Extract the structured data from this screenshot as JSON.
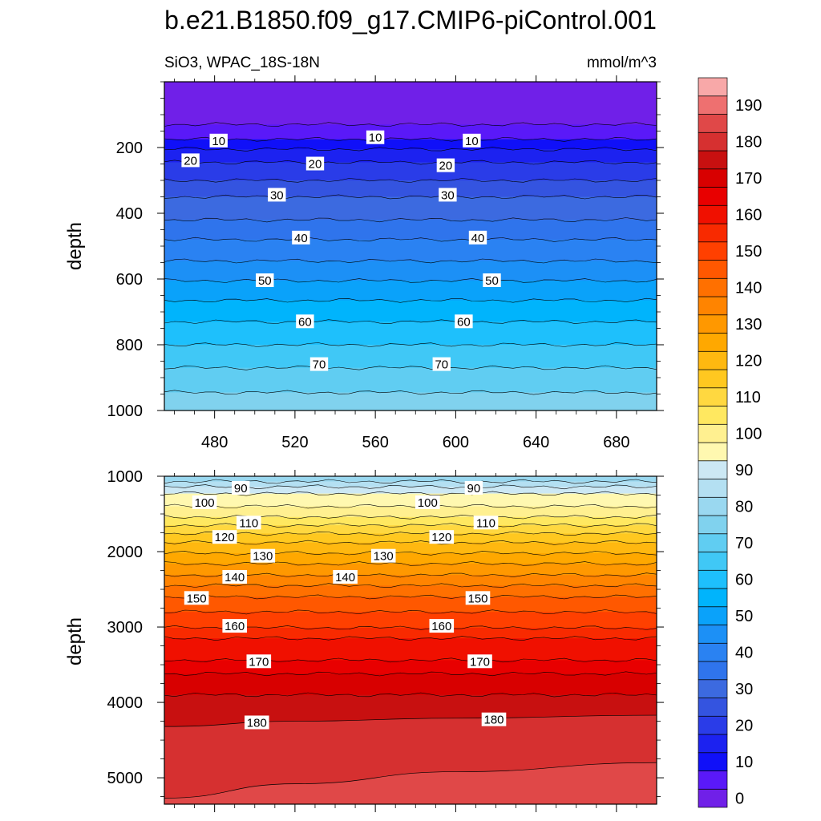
{
  "title": "b.e21.B1850.f09_g17.CMIP6-piControl.001",
  "chart_data": [
    {
      "type": "contour",
      "panel": "upper",
      "left_label": "SiO3, WPAC_18S-18N",
      "right_label": "mmol/m^3",
      "ylabel": "depth",
      "ylim": [
        1000,
        0
      ],
      "xlim": [
        455,
        700
      ],
      "xticks": [
        480,
        520,
        560,
        600,
        640,
        680
      ],
      "yticks": [
        200,
        400,
        600,
        800,
        1000
      ],
      "contour_depths": [
        {
          "level": 5,
          "depth": 130
        },
        {
          "level": 10,
          "depth": 175
        },
        {
          "level": 15,
          "depth": 205
        },
        {
          "level": 20,
          "depth": 245
        },
        {
          "level": 25,
          "depth": 300
        },
        {
          "level": 30,
          "depth": 350
        },
        {
          "level": 35,
          "depth": 420
        },
        {
          "level": 40,
          "depth": 480
        },
        {
          "level": 45,
          "depth": 545
        },
        {
          "level": 50,
          "depth": 605
        },
        {
          "level": 55,
          "depth": 665
        },
        {
          "level": 60,
          "depth": 730
        },
        {
          "level": 65,
          "depth": 800
        },
        {
          "level": 70,
          "depth": 870
        },
        {
          "level": 75,
          "depth": 945
        }
      ],
      "contour_labels": [
        {
          "text": "10",
          "x": 482,
          "depth": 180
        },
        {
          "text": "10",
          "x": 560,
          "depth": 170
        },
        {
          "text": "10",
          "x": 608,
          "depth": 180
        },
        {
          "text": "20",
          "x": 468,
          "depth": 240
        },
        {
          "text": "20",
          "x": 530,
          "depth": 250
        },
        {
          "text": "20",
          "x": 595,
          "depth": 255
        },
        {
          "text": "30",
          "x": 511,
          "depth": 345
        },
        {
          "text": "30",
          "x": 596,
          "depth": 345
        },
        {
          "text": "40",
          "x": 523,
          "depth": 475
        },
        {
          "text": "40",
          "x": 611,
          "depth": 475
        },
        {
          "text": "50",
          "x": 505,
          "depth": 605
        },
        {
          "text": "50",
          "x": 618,
          "depth": 605
        },
        {
          "text": "60",
          "x": 525,
          "depth": 730
        },
        {
          "text": "60",
          "x": 604,
          "depth": 730
        },
        {
          "text": "70",
          "x": 532,
          "depth": 860
        },
        {
          "text": "70",
          "x": 593,
          "depth": 860
        }
      ]
    },
    {
      "type": "contour",
      "panel": "lower",
      "ylabel": "depth",
      "ylim": [
        5350,
        1000
      ],
      "xlim": [
        455,
        700
      ],
      "xticks": [
        480,
        520,
        560,
        600,
        640,
        680
      ],
      "yticks": [
        1000,
        2000,
        3000,
        4000,
        5000
      ],
      "contour_depths": [
        {
          "level": 85,
          "depth": 1070
        },
        {
          "level": 90,
          "depth": 1140
        },
        {
          "level": 95,
          "depth": 1230
        },
        {
          "level": 100,
          "depth": 1400
        },
        {
          "level": 105,
          "depth": 1540
        },
        {
          "level": 110,
          "depth": 1650
        },
        {
          "level": 115,
          "depth": 1760
        },
        {
          "level": 120,
          "depth": 1880
        },
        {
          "level": 125,
          "depth": 2020
        },
        {
          "level": 130,
          "depth": 2160
        },
        {
          "level": 135,
          "depth": 2310
        },
        {
          "level": 140,
          "depth": 2450
        },
        {
          "level": 145,
          "depth": 2600
        },
        {
          "level": 150,
          "depth": 2800
        },
        {
          "level": 155,
          "depth": 3010
        },
        {
          "level": 160,
          "depth": 3150
        },
        {
          "level": 165,
          "depth": 3440
        },
        {
          "level": 170,
          "depth": 3620
        },
        {
          "level": 175,
          "depth": 3900
        }
      ],
      "contour_180": [
        {
          "x": 455,
          "depth": 4320
        },
        {
          "x": 520,
          "depth": 4250
        },
        {
          "x": 600,
          "depth": 4210
        },
        {
          "x": 700,
          "depth": 4170
        }
      ],
      "contour_185": [
        {
          "x": 455,
          "depth": 5270
        },
        {
          "x": 520,
          "depth": 5080
        },
        {
          "x": 600,
          "depth": 4920
        },
        {
          "x": 700,
          "depth": 4800
        }
      ],
      "contour_labels": [
        {
          "text": "90",
          "x": 493,
          "depth": 1160
        },
        {
          "text": "90",
          "x": 609,
          "depth": 1160
        },
        {
          "text": "100",
          "x": 475,
          "depth": 1350
        },
        {
          "text": "100",
          "x": 586,
          "depth": 1350
        },
        {
          "text": "110",
          "x": 497,
          "depth": 1620
        },
        {
          "text": "110",
          "x": 615,
          "depth": 1620
        },
        {
          "text": "120",
          "x": 485,
          "depth": 1810
        },
        {
          "text": "120",
          "x": 593,
          "depth": 1810
        },
        {
          "text": "130",
          "x": 504,
          "depth": 2060
        },
        {
          "text": "130",
          "x": 564,
          "depth": 2060
        },
        {
          "text": "140",
          "x": 490,
          "depth": 2340
        },
        {
          "text": "140",
          "x": 545,
          "depth": 2340
        },
        {
          "text": "150",
          "x": 471,
          "depth": 2620
        },
        {
          "text": "150",
          "x": 611,
          "depth": 2620
        },
        {
          "text": "160",
          "x": 490,
          "depth": 2990
        },
        {
          "text": "160",
          "x": 593,
          "depth": 2990
        },
        {
          "text": "170",
          "x": 502,
          "depth": 3460
        },
        {
          "text": "170",
          "x": 612,
          "depth": 3460
        },
        {
          "text": "180",
          "x": 501,
          "depth": 4270
        },
        {
          "text": "180",
          "x": 619,
          "depth": 4230
        }
      ]
    }
  ],
  "colorbar": {
    "labels": [
      "0",
      "10",
      "20",
      "30",
      "40",
      "50",
      "60",
      "70",
      "80",
      "90",
      "100",
      "110",
      "120",
      "130",
      "140",
      "150",
      "160",
      "170",
      "180",
      "190"
    ],
    "colors": [
      "#7020e8",
      "#5a19f8",
      "#1010f8",
      "#1c22f0",
      "#2a3ce8",
      "#3454e0",
      "#3c6ae0",
      "#2f74ec",
      "#2a82f2",
      "#1c90f6",
      "#0aa2fa",
      "#00b4fc",
      "#1ec0fc",
      "#40c8f6",
      "#60cdf2",
      "#80d2ee",
      "#9ad8f0",
      "#b4e0f2",
      "#cce8f4",
      "#fff8b0",
      "#fff090",
      "#ffe860",
      "#ffd840",
      "#ffc820",
      "#ffb810",
      "#ffa800",
      "#ff9800",
      "#ff8400",
      "#ff7000",
      "#ff5800",
      "#ff4000",
      "#f82a00",
      "#f01000",
      "#e80000",
      "#d80000",
      "#c81010",
      "#d63030",
      "#e04848",
      "#ee7070",
      "#f8a8a8"
    ]
  }
}
